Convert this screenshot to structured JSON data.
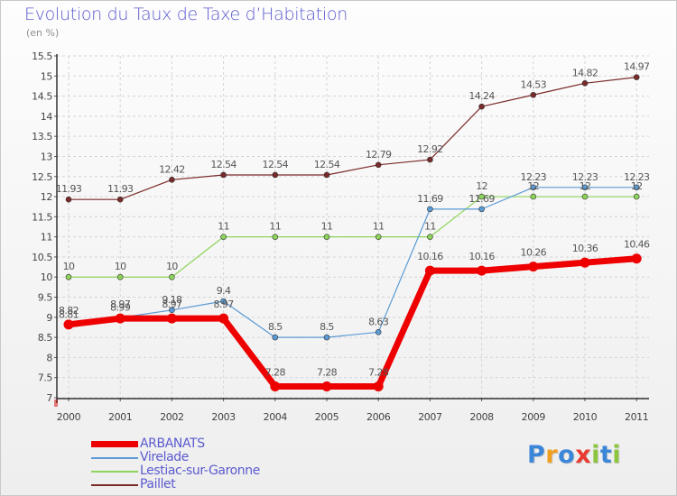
{
  "header": {
    "title": "Evolution du Taux de Taxe d’Habitation",
    "subtitle": "(en %)"
  },
  "chart_data": {
    "type": "line",
    "title": "Evolution du Taux de Taxe d’Habitation",
    "subtitle": "(en %)",
    "xlabel": "",
    "ylabel": "",
    "categories": [
      "2000",
      "2001",
      "2002",
      "2003",
      "2004",
      "2005",
      "2006",
      "2007",
      "2008",
      "2009",
      "2010",
      "2011"
    ],
    "ylim": [
      7,
      15.5
    ],
    "yticks": [
      "7",
      "7.5",
      "8",
      "8.5",
      "9",
      "9.5",
      "10",
      "10.5",
      "11",
      "11.5",
      "12",
      "12.5",
      "13",
      "13.5",
      "14",
      "14.5",
      "15",
      "15.5"
    ],
    "grid": true,
    "legend_position": "bottom-left",
    "series": [
      {
        "name": "Paillet",
        "color": "#7a2a2a",
        "values": [
          11.93,
          11.93,
          12.42,
          12.54,
          12.54,
          12.54,
          12.79,
          12.92,
          14.24,
          14.53,
          14.82,
          14.97
        ],
        "labels": [
          "11.93",
          "11.93",
          "12.42",
          "12.54",
          "12.54",
          "12.54",
          "12.79",
          "12.92",
          "14.24",
          "14.53",
          "14.82",
          "14.97"
        ]
      },
      {
        "name": "Lestiac-sur-Garonne",
        "color": "#8ed45a",
        "values": [
          10,
          10,
          10,
          11,
          11,
          11,
          11,
          11,
          12,
          12,
          12,
          12
        ],
        "labels": [
          "10",
          "10",
          "10",
          "11",
          "11",
          "11",
          "11",
          "11",
          "12",
          "12",
          "12",
          "12"
        ]
      },
      {
        "name": "Virelade",
        "color": "#5a9ad6",
        "values": [
          8.81,
          8.99,
          9.18,
          9.4,
          8.5,
          8.5,
          8.63,
          11.69,
          11.69,
          12.23,
          12.23,
          12.23
        ],
        "labels": [
          "8.81",
          "8.99",
          "9.18",
          "9.4",
          "8.5",
          "8.5",
          "8.63",
          "11.69",
          "11.69",
          "12.23",
          "12.23",
          "12.23"
        ]
      },
      {
        "name": "ARBANATS",
        "color": "#ee0000",
        "values": [
          8.82,
          8.97,
          8.97,
          8.97,
          7.28,
          7.28,
          7.28,
          10.16,
          10.16,
          10.26,
          10.36,
          10.46
        ],
        "labels": [
          "8.82",
          "8.97",
          "8.97",
          "8.97",
          "7.28",
          "7.28",
          "7.28",
          "10.16",
          "10.16",
          "10.26",
          "10.36",
          "10.46"
        ]
      }
    ]
  },
  "legend": {
    "items": [
      {
        "label": "ARBANATS",
        "color": "#ee0000"
      },
      {
        "label": "Virelade",
        "color": "#5a9ad6"
      },
      {
        "label": "Lestiac-sur-Garonne",
        "color": "#8ed45a"
      },
      {
        "label": "Paillet",
        "color": "#7a2a2a"
      }
    ]
  },
  "logo": {
    "text": "Proxiti",
    "letters": [
      {
        "ch": "P",
        "color": "#3a86d8"
      },
      {
        "ch": "r",
        "color": "#f0a020"
      },
      {
        "ch": "o",
        "color": "#3a86d8"
      },
      {
        "ch": "x",
        "color": "#e83a30"
      },
      {
        "ch": "i",
        "color": "#8cc63f"
      },
      {
        "ch": "t",
        "color": "#3a86d8"
      },
      {
        "ch": "i",
        "color": "#8cc63f"
      }
    ]
  }
}
